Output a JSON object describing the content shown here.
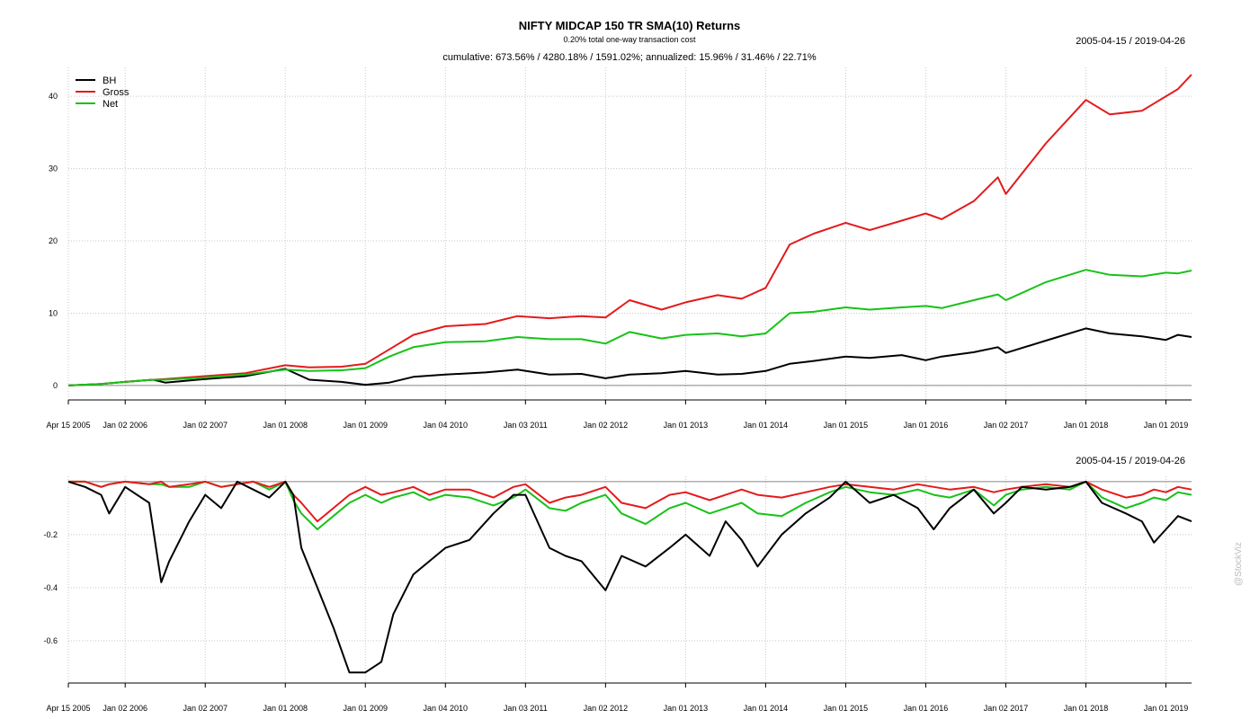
{
  "title": "NIFTY MIDCAP 150 TR SMA(10) Returns",
  "subtitle": "0.20% total one-way transaction cost",
  "stats": "cumulative: 673.56% / 4280.18% / 1591.02%; annualized: 15.96% / 31.46% / 22.71%",
  "date_range_top": "2005-04-15 / 2019-04-26",
  "date_range_bottom": "2005-04-15 / 2019-04-26",
  "watermark": "@StockViz",
  "colors": {
    "BH": "#000000",
    "Gross": "#e41a1c",
    "Net": "#17c217",
    "grid": "#c8c8c8"
  },
  "chart_data": [
    {
      "type": "line",
      "panel": "cumulative returns",
      "legend": [
        "BH",
        "Gross",
        "Net"
      ],
      "legend_position": "top-left",
      "grid": true,
      "xlim": [
        2005.29,
        2019.32
      ],
      "ylim": [
        -2,
        44
      ],
      "y_ticks": [
        0,
        10,
        20,
        30,
        40
      ],
      "x_ticks": [
        {
          "x": 2005.29,
          "label": "Apr 15 2005"
        },
        {
          "x": 2006.0,
          "label": "Jan 02 2006"
        },
        {
          "x": 2007.0,
          "label": "Jan 02 2007"
        },
        {
          "x": 2008.0,
          "label": "Jan 01 2008"
        },
        {
          "x": 2009.0,
          "label": "Jan 01 2009"
        },
        {
          "x": 2010.0,
          "label": "Jan 04 2010"
        },
        {
          "x": 2011.0,
          "label": "Jan 03 2011"
        },
        {
          "x": 2012.0,
          "label": "Jan 02 2012"
        },
        {
          "x": 2013.0,
          "label": "Jan 01 2013"
        },
        {
          "x": 2014.0,
          "label": "Jan 01 2014"
        },
        {
          "x": 2015.0,
          "label": "Jan 01 2015"
        },
        {
          "x": 2016.0,
          "label": "Jan 01 2016"
        },
        {
          "x": 2017.0,
          "label": "Jan 02 2017"
        },
        {
          "x": 2018.0,
          "label": "Jan 01 2018"
        },
        {
          "x": 2019.0,
          "label": "Jan 01 2019"
        }
      ],
      "x": [
        2005.29,
        2005.7,
        2006.0,
        2006.35,
        2006.5,
        2007.0,
        2007.5,
        2008.0,
        2008.3,
        2008.7,
        2009.0,
        2009.3,
        2009.6,
        2010.0,
        2010.5,
        2010.9,
        2011.3,
        2011.7,
        2012.0,
        2012.3,
        2012.7,
        2013.0,
        2013.4,
        2013.7,
        2014.0,
        2014.3,
        2014.6,
        2015.0,
        2015.3,
        2015.7,
        2016.0,
        2016.2,
        2016.6,
        2016.9,
        2017.0,
        2017.5,
        2018.0,
        2018.3,
        2018.7,
        2019.0,
        2019.15,
        2019.32
      ],
      "series": [
        {
          "name": "BH",
          "values": [
            0,
            0.2,
            0.5,
            0.8,
            0.4,
            0.9,
            1.3,
            2.3,
            0.8,
            0.5,
            0.1,
            0.4,
            1.2,
            1.5,
            1.8,
            2.2,
            1.5,
            1.6,
            1.0,
            1.5,
            1.7,
            2.0,
            1.5,
            1.6,
            2.0,
            3.0,
            3.4,
            4.0,
            3.8,
            4.2,
            3.5,
            4.0,
            4.6,
            5.3,
            4.5,
            6.2,
            7.9,
            7.2,
            6.8,
            6.3,
            7.0,
            6.7
          ]
        },
        {
          "name": "Gross",
          "values": [
            0,
            0.2,
            0.5,
            0.8,
            0.9,
            1.3,
            1.7,
            2.8,
            2.5,
            2.6,
            3.0,
            5.0,
            7.0,
            8.2,
            8.5,
            9.6,
            9.3,
            9.6,
            9.4,
            11.8,
            10.5,
            11.5,
            12.5,
            12.0,
            13.5,
            19.5,
            21.0,
            22.5,
            21.5,
            22.8,
            23.8,
            23.0,
            25.5,
            28.8,
            26.5,
            33.5,
            39.5,
            37.5,
            38.0,
            40.0,
            41.0,
            43.0
          ]
        },
        {
          "name": "Net",
          "values": [
            0,
            0.2,
            0.5,
            0.8,
            0.8,
            1.1,
            1.5,
            2.2,
            2.0,
            2.1,
            2.4,
            4.0,
            5.3,
            6.0,
            6.1,
            6.7,
            6.4,
            6.4,
            5.8,
            7.4,
            6.5,
            7.0,
            7.2,
            6.8,
            7.2,
            10.0,
            10.2,
            10.8,
            10.5,
            10.8,
            11.0,
            10.7,
            11.8,
            12.6,
            11.8,
            14.3,
            16.0,
            15.3,
            15.1,
            15.6,
            15.5,
            15.9
          ]
        }
      ]
    },
    {
      "type": "line",
      "panel": "drawdowns",
      "grid": true,
      "xlim": [
        2005.29,
        2019.32
      ],
      "ylim": [
        -0.76,
        0.02
      ],
      "y_ticks": [
        -0.6,
        -0.4,
        -0.2
      ],
      "x_ticks": [
        {
          "x": 2005.29,
          "label": "Apr 15 2005"
        },
        {
          "x": 2006.0,
          "label": "Jan 02 2006"
        },
        {
          "x": 2007.0,
          "label": "Jan 02 2007"
        },
        {
          "x": 2008.0,
          "label": "Jan 01 2008"
        },
        {
          "x": 2009.0,
          "label": "Jan 01 2009"
        },
        {
          "x": 2010.0,
          "label": "Jan 04 2010"
        },
        {
          "x": 2011.0,
          "label": "Jan 03 2011"
        },
        {
          "x": 2012.0,
          "label": "Jan 02 2012"
        },
        {
          "x": 2013.0,
          "label": "Jan 01 2013"
        },
        {
          "x": 2014.0,
          "label": "Jan 01 2014"
        },
        {
          "x": 2015.0,
          "label": "Jan 01 2015"
        },
        {
          "x": 2016.0,
          "label": "Jan 01 2016"
        },
        {
          "x": 2017.0,
          "label": "Jan 02 2017"
        },
        {
          "x": 2018.0,
          "label": "Jan 01 2018"
        },
        {
          "x": 2019.0,
          "label": "Jan 01 2019"
        }
      ],
      "x": [
        2005.29,
        2005.5,
        2005.7,
        2005.8,
        2006.0,
        2006.3,
        2006.45,
        2006.55,
        2006.8,
        2007.0,
        2007.2,
        2007.4,
        2007.6,
        2007.8,
        2008.0,
        2008.1,
        2008.2,
        2008.4,
        2008.6,
        2008.8,
        2009.0,
        2009.2,
        2009.35,
        2009.6,
        2009.8,
        2010.0,
        2010.3,
        2010.6,
        2010.85,
        2011.0,
        2011.3,
        2011.5,
        2011.7,
        2012.0,
        2012.2,
        2012.5,
        2012.8,
        2013.0,
        2013.3,
        2013.5,
        2013.7,
        2013.9,
        2014.2,
        2014.5,
        2014.8,
        2015.0,
        2015.3,
        2015.6,
        2015.9,
        2016.1,
        2016.3,
        2016.6,
        2016.85,
        2017.0,
        2017.2,
        2017.5,
        2017.8,
        2018.0,
        2018.2,
        2018.5,
        2018.7,
        2018.85,
        2019.0,
        2019.15,
        2019.32
      ],
      "series": [
        {
          "name": "BH",
          "values": [
            0,
            -0.02,
            -0.05,
            -0.12,
            -0.02,
            -0.08,
            -0.38,
            -0.3,
            -0.15,
            -0.05,
            -0.1,
            0,
            -0.03,
            -0.06,
            0,
            -0.05,
            -0.25,
            -0.4,
            -0.55,
            -0.72,
            -0.72,
            -0.68,
            -0.5,
            -0.35,
            -0.3,
            -0.25,
            -0.22,
            -0.12,
            -0.05,
            -0.05,
            -0.25,
            -0.28,
            -0.3,
            -0.41,
            -0.28,
            -0.32,
            -0.25,
            -0.2,
            -0.28,
            -0.15,
            -0.22,
            -0.32,
            -0.2,
            -0.12,
            -0.06,
            0,
            -0.08,
            -0.05,
            -0.1,
            -0.18,
            -0.1,
            -0.03,
            -0.12,
            -0.08,
            -0.02,
            -0.03,
            -0.02,
            0,
            -0.08,
            -0.12,
            -0.15,
            -0.23,
            -0.18,
            -0.13,
            -0.15
          ]
        },
        {
          "name": "Gross",
          "values": [
            0,
            0,
            -0.02,
            -0.01,
            0,
            -0.01,
            0,
            -0.02,
            -0.01,
            0,
            -0.02,
            -0.01,
            0,
            -0.02,
            0,
            -0.05,
            -0.08,
            -0.15,
            -0.1,
            -0.05,
            -0.02,
            -0.05,
            -0.04,
            -0.02,
            -0.05,
            -0.03,
            -0.03,
            -0.06,
            -0.02,
            -0.01,
            -0.08,
            -0.06,
            -0.05,
            -0.02,
            -0.08,
            -0.1,
            -0.05,
            -0.04,
            -0.07,
            -0.05,
            -0.03,
            -0.05,
            -0.06,
            -0.04,
            -0.02,
            -0.01,
            -0.02,
            -0.03,
            -0.01,
            -0.02,
            -0.03,
            -0.02,
            -0.04,
            -0.03,
            -0.02,
            -0.01,
            -0.02,
            0,
            -0.03,
            -0.06,
            -0.05,
            -0.03,
            -0.04,
            -0.02,
            -0.03
          ]
        },
        {
          "name": "Net",
          "values": [
            0,
            0,
            -0.02,
            -0.01,
            0,
            -0.01,
            -0.01,
            -0.02,
            -0.02,
            0,
            -0.02,
            -0.01,
            0,
            -0.03,
            0,
            -0.07,
            -0.12,
            -0.18,
            -0.13,
            -0.08,
            -0.05,
            -0.08,
            -0.06,
            -0.04,
            -0.07,
            -0.05,
            -0.06,
            -0.09,
            -0.06,
            -0.03,
            -0.1,
            -0.11,
            -0.08,
            -0.05,
            -0.12,
            -0.16,
            -0.1,
            -0.08,
            -0.12,
            -0.1,
            -0.08,
            -0.12,
            -0.13,
            -0.08,
            -0.04,
            -0.02,
            -0.04,
            -0.05,
            -0.03,
            -0.05,
            -0.06,
            -0.03,
            -0.09,
            -0.05,
            -0.03,
            -0.02,
            -0.03,
            0,
            -0.06,
            -0.1,
            -0.08,
            -0.06,
            -0.07,
            -0.04,
            -0.05
          ]
        }
      ]
    }
  ]
}
